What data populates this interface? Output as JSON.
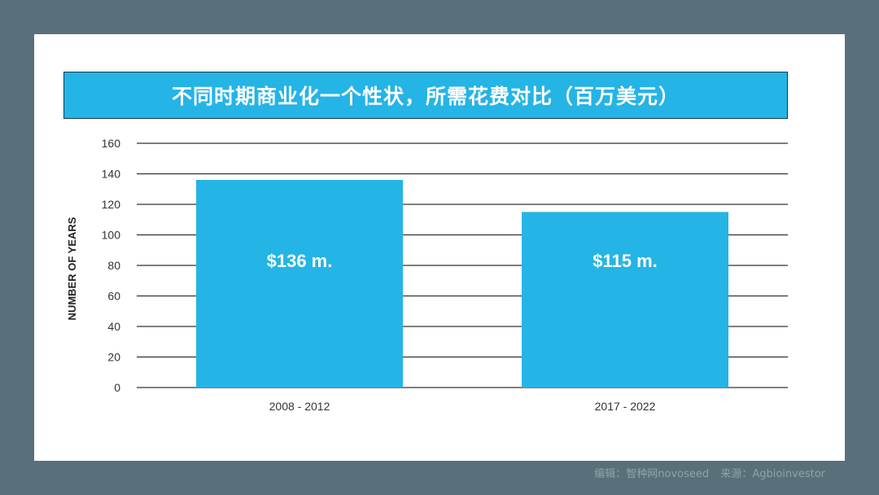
{
  "title": "不同时期商业化一个性状，所需花费对比（百万美元）",
  "footer": {
    "editor": "编辑：智种网novoseed",
    "source": "来源：Agbioinvestor"
  },
  "colors": {
    "bar": "#25b4e6",
    "background": "#587079",
    "grid": "#333333"
  },
  "chart_data": {
    "type": "bar",
    "categories": [
      "2008 - 2012",
      "2017 - 2022"
    ],
    "values": [
      136,
      115
    ],
    "data_labels": [
      "$136 m.",
      "$115 m."
    ],
    "xlabel": "",
    "ylabel": "NUMBER OF YEARS",
    "ylim": [
      0,
      160
    ],
    "yticks": [
      0,
      20,
      40,
      60,
      80,
      100,
      120,
      140,
      160
    ],
    "grid": true,
    "legend": "none"
  }
}
